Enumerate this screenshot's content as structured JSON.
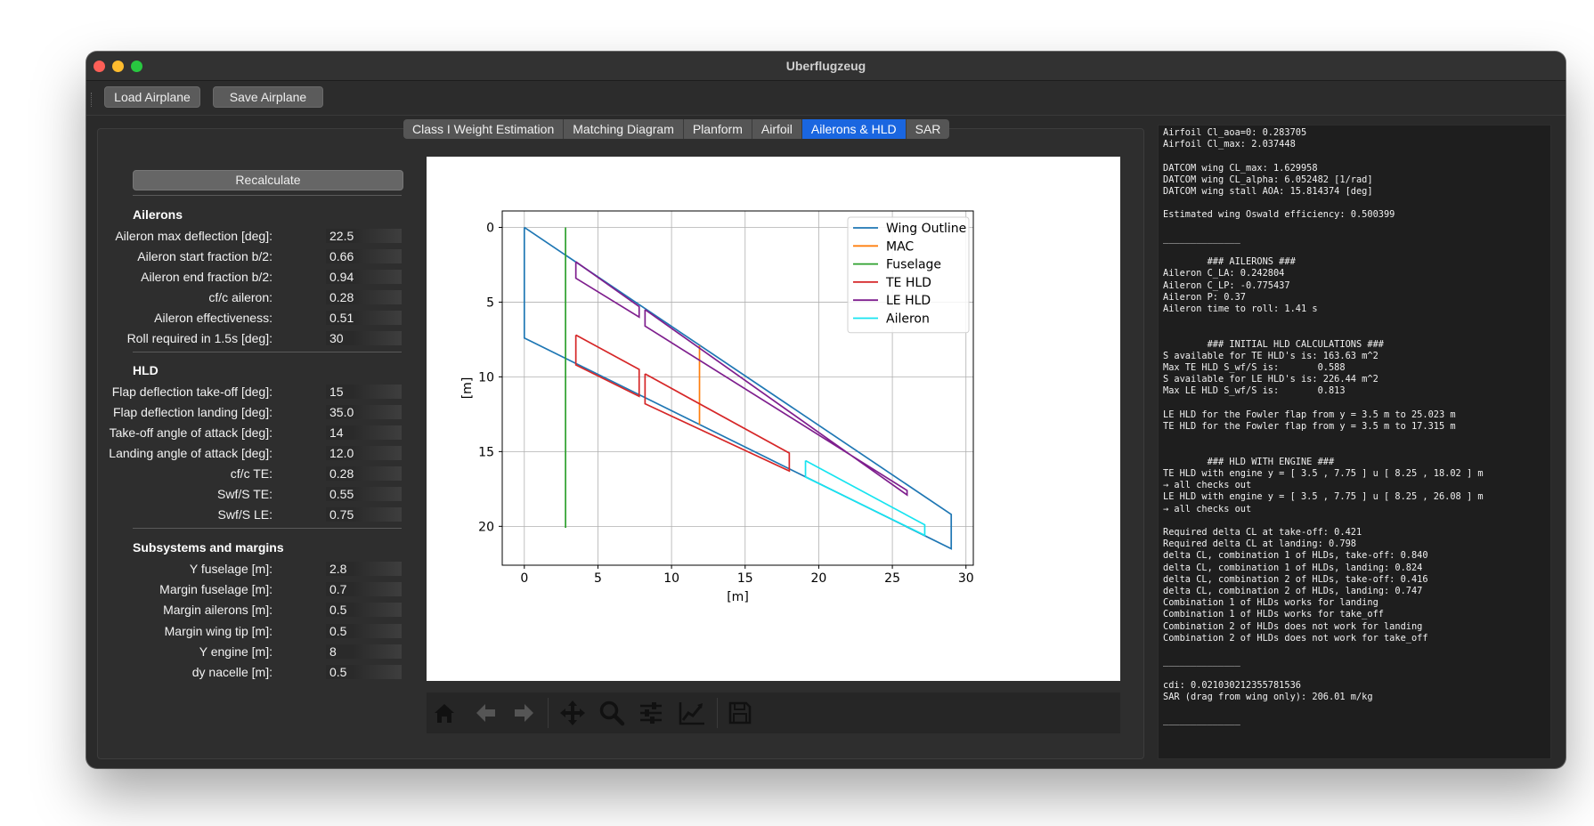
{
  "window": {
    "title": "Uberflugzeug"
  },
  "toolbar": {
    "load_label": "Load Airplane",
    "save_label": "Save Airplane"
  },
  "tabs": [
    {
      "label": "Class I Weight Estimation"
    },
    {
      "label": "Matching Diagram"
    },
    {
      "label": "Planform"
    },
    {
      "label": "Airfoil"
    },
    {
      "label": "Ailerons & HLD",
      "active": true
    },
    {
      "label": "SAR"
    }
  ],
  "sidebar": {
    "recalc_label": "Recalculate",
    "ailerons": {
      "title": "Ailerons",
      "params": [
        {
          "label": "Aileron max deflection [deg]:",
          "value": "22.5"
        },
        {
          "label": "Aileron start fraction b/2:",
          "value": "0.66"
        },
        {
          "label": "Aileron end fraction b/2:",
          "value": "0.94"
        },
        {
          "label": "cf/c aileron:",
          "value": "0.28"
        },
        {
          "label": "Aileron effectiveness:",
          "value": "0.51"
        },
        {
          "label": "Roll required in 1.5s [deg]:",
          "value": "30"
        }
      ]
    },
    "hld": {
      "title": "HLD",
      "params": [
        {
          "label": "Flap deflection take-off [deg]:",
          "value": "15"
        },
        {
          "label": "Flap deflection landing [deg]:",
          "value": "35.0"
        },
        {
          "label": "Take-off angle of attack [deg]:",
          "value": "14"
        },
        {
          "label": "Landing angle of attack [deg]:",
          "value": "12.0"
        },
        {
          "label": "cf/c TE:",
          "value": "0.28"
        },
        {
          "label": "Swf/S TE:",
          "value": "0.55"
        },
        {
          "label": "Swf/S LE:",
          "value": "0.75"
        }
      ]
    },
    "subsystems": {
      "title": "Subsystems and margins",
      "params": [
        {
          "label": "Y fuselage [m]:",
          "value": "2.8"
        },
        {
          "label": "Margin fuselage [m]:",
          "value": "0.7"
        },
        {
          "label": "Margin ailerons [m]:",
          "value": "0.5"
        },
        {
          "label": "Margin wing tip [m]:",
          "value": "0.5"
        },
        {
          "label": "Y engine [m]:",
          "value": "8"
        },
        {
          "label": "dy nacelle [m]:",
          "value": "0.5"
        }
      ]
    }
  },
  "chart_data": {
    "type": "line",
    "title": "",
    "xlabel": "[m]",
    "ylabel": "[m]",
    "xlim": [
      -1.5,
      30.5
    ],
    "ylim": [
      22.6,
      -1.1
    ],
    "y_inverted": true,
    "x_ticks": [
      "0",
      "5",
      "10",
      "15",
      "20",
      "25",
      "30"
    ],
    "y_ticks": [
      "0",
      "5",
      "10",
      "15",
      "20"
    ],
    "grid": true,
    "legend_position": "top-right",
    "series": [
      {
        "name": "Wing Outline",
        "color": "#1f77b4",
        "segments": [
          [
            [
              0,
              0
            ],
            [
              29,
              19.2
            ],
            [
              29,
              21.5
            ],
            [
              0,
              7.4
            ],
            [
              0,
              0
            ]
          ]
        ]
      },
      {
        "name": "MAC",
        "color": "#ff7f0e",
        "segments": [
          [
            [
              11.9,
              7.9
            ],
            [
              11.9,
              13.2
            ]
          ]
        ]
      },
      {
        "name": "Fuselage",
        "color": "#2ca02c",
        "segments": [
          [
            [
              2.8,
              0
            ],
            [
              2.8,
              20.1
            ]
          ]
        ]
      },
      {
        "name": "TE HLD",
        "color": "#d62728",
        "segments": [
          [
            [
              3.5,
              7.2
            ],
            [
              7.8,
              9.5
            ],
            [
              7.8,
              11.3
            ],
            [
              3.5,
              9.2
            ],
            [
              3.5,
              7.2
            ]
          ],
          [
            [
              8.2,
              9.8
            ],
            [
              18.0,
              15.1
            ],
            [
              18.0,
              16.3
            ],
            [
              8.2,
              11.8
            ],
            [
              8.2,
              9.8
            ]
          ]
        ]
      },
      {
        "name": "LE HLD",
        "color": "#7f1f8e",
        "segments": [
          [
            [
              3.5,
              2.3
            ],
            [
              7.8,
              5.3
            ],
            [
              7.8,
              6.0
            ],
            [
              3.5,
              3.4
            ],
            [
              3.5,
              2.3
            ]
          ],
          [
            [
              8.2,
              5.5
            ],
            [
              26.0,
              17.9
            ],
            [
              26.0,
              17.6
            ],
            [
              8.2,
              6.6
            ],
            [
              8.2,
              5.5
            ]
          ]
        ]
      },
      {
        "name": "Aileron",
        "color": "#17e4f0",
        "segments": [
          [
            [
              19.1,
              15.6
            ],
            [
              27.2,
              19.9
            ],
            [
              27.2,
              20.6
            ],
            [
              19.1,
              16.7
            ],
            [
              19.1,
              15.6
            ]
          ]
        ]
      }
    ]
  },
  "nav_icons": [
    "home-icon",
    "back-icon",
    "forward-icon",
    "pan-icon",
    "zoom-icon",
    "subplots-icon",
    "axes-edit-icon",
    "save-icon"
  ],
  "console": {
    "lines": [
      "Airfoil Cl_aoa=0: 0.283705",
      "Airfoil Cl_max: 2.037448",
      "",
      "DATCOM wing CL_max: 1.629958",
      "DATCOM wing CL_alpha: 6.052482 [1/rad]",
      "DATCOM wing stall AOA: 15.814374 [deg]",
      "",
      "Estimated wing Oswald efficiency: 0.500399",
      "",
      "______________",
      "",
      "        ### AILERONS ###",
      "Aileron C_LA: 0.242804",
      "Aileron C_LP: -0.775437",
      "Aileron P: 0.37",
      "Aileron time to roll: 1.41 s",
      "",
      "",
      "        ### INITIAL HLD CALCULATIONS ###",
      "S available for TE HLD's is: 163.63 m^2",
      "Max TE HLD S_wf/S is:       0.588",
      "S available for LE HLD's is: 226.44 m^2",
      "Max LE HLD S_wf/S is:       0.813",
      "",
      "LE HLD for the Fowler flap from y = 3.5 m to 25.023 m",
      "TE HLD for the Fowler flap from y = 3.5 m to 17.315 m",
      "",
      "",
      "        ### HLD WITH ENGINE ###",
      "TE HLD with engine y = [ 3.5 , 7.75 ] u [ 8.25 , 18.02 ] m",
      "→ all checks out",
      "LE HLD with engine y = [ 3.5 , 7.75 ] u [ 8.25 , 26.08 ] m",
      "→ all checks out",
      "",
      "Required delta CL at take-off: 0.421",
      "Required delta CL at landing: 0.798",
      "delta CL, combination 1 of HLDs, take-off: 0.840",
      "delta CL, combination 1 of HLDs, landing: 0.824",
      "delta CL, combination 2 of HLDs, take-off: 0.416",
      "delta CL, combination 2 of HLDs, landing: 0.747",
      "Combination 1 of HLDs works for landing",
      "Combination 1 of HLDs works for take_off",
      "Combination 2 of HLDs does not work for landing",
      "Combination 2 of HLDs does not work for take_off",
      "",
      "______________",
      "",
      "cdi: 0.021030212355781536",
      "SAR (drag from wing only): 206.01 m/kg",
      "",
      "______________"
    ]
  }
}
